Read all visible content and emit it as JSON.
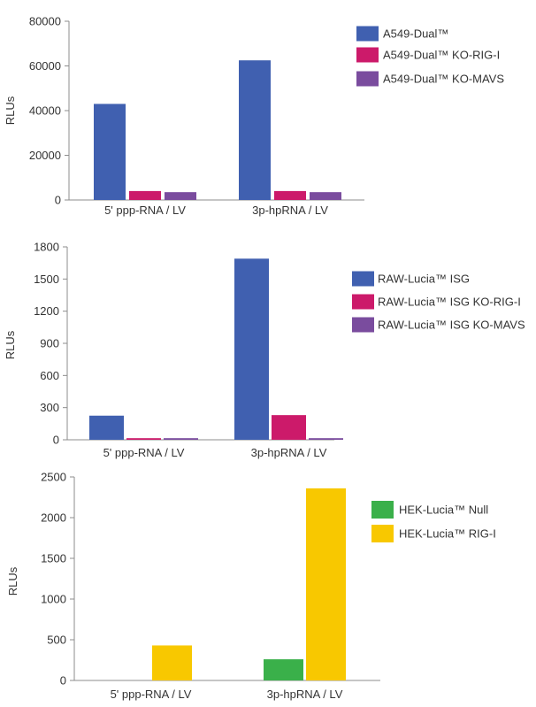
{
  "chart_data": [
    {
      "type": "bar",
      "title": "",
      "xlabel": "",
      "ylabel": "RLUs",
      "ylim": [
        0,
        80000
      ],
      "yticks": [
        "0",
        "20000",
        "40000",
        "60000",
        "80000"
      ],
      "ytick_values": [
        0,
        20000,
        40000,
        60000,
        80000
      ],
      "categories": [
        "5' ppp-RNA / LV",
        "3p-hpRNA / LV"
      ],
      "grid": false,
      "legend_position": "top-right",
      "series": [
        {
          "name": "A549-Dual™",
          "color": "#4060b0",
          "values": [
            43000,
            62500
          ]
        },
        {
          "name": "A549-Dual™ KO-RIG-I",
          "color": "#cc1a6a",
          "values": [
            4000,
            4000
          ]
        },
        {
          "name": "A549-Dual™  KO-MAVS",
          "color": "#7a4c9e",
          "values": [
            3500,
            3500
          ]
        }
      ]
    },
    {
      "type": "bar",
      "title": "",
      "xlabel": "",
      "ylabel": "RLUs",
      "ylim": [
        0,
        1800
      ],
      "yticks": [
        "0",
        "300",
        "600",
        "900",
        "1200",
        "1500",
        "1800"
      ],
      "ytick_values": [
        0,
        300,
        600,
        900,
        1200,
        1500,
        1800
      ],
      "categories": [
        "5' ppp-RNA / LV",
        "3p-hpRNA / LV"
      ],
      "grid": false,
      "legend_position": "right",
      "series": [
        {
          "name": "RAW-Lucia™ ISG",
          "color": "#4060b0",
          "values": [
            225,
            1690
          ]
        },
        {
          "name": "RAW-Lucia™ ISG KO-RIG-I",
          "color": "#cc1a6a",
          "values": [
            15,
            230
          ]
        },
        {
          "name": "RAW-Lucia™ ISG KO-MAVS",
          "color": "#7a4c9e",
          "values": [
            15,
            15
          ]
        }
      ]
    },
    {
      "type": "bar",
      "title": "",
      "xlabel": "",
      "ylabel": "RLUs",
      "ylim": [
        0,
        2500
      ],
      "yticks": [
        "0",
        "500",
        "1000",
        "1500",
        "2000",
        "2500"
      ],
      "ytick_values": [
        0,
        500,
        1000,
        1500,
        2000,
        2500
      ],
      "categories": [
        "5' ppp-RNA / LV",
        "3p-hpRNA / LV"
      ],
      "grid": false,
      "legend_position": "top-right",
      "series": [
        {
          "name": "HEK-Lucia™ Null",
          "color": "#3ab04a",
          "values": [
            0,
            260
          ]
        },
        {
          "name": "HEK-Lucia™ RIG-I",
          "color": "#f8c800",
          "values": [
            430,
            2360
          ]
        }
      ]
    }
  ]
}
